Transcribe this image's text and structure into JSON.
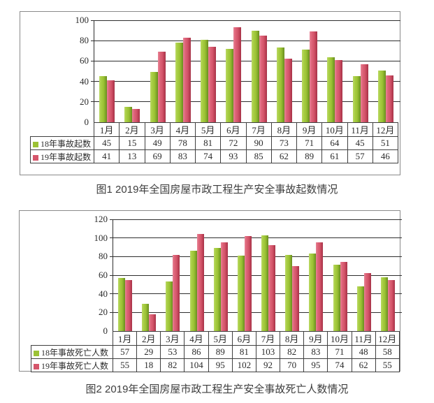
{
  "colors": {
    "green_series": "#9CC235",
    "green_light": "#BCD964",
    "green_dark": "#688A1E",
    "red_series": "#D5566B",
    "red_light": "#E88496",
    "red_dark": "#A33247",
    "grid_line": "#2E2E2E",
    "table_border": "#3F3F3F",
    "panel_border": "#8A8A8A",
    "caption_text": "#3D3D3D"
  },
  "chart_data": [
    {
      "type": "bar",
      "title": "图1 2019年全国房屋市政工程生产安全事故起数情况",
      "categories": [
        "1月",
        "2月",
        "3月",
        "4月",
        "5月",
        "6月",
        "7月",
        "8月",
        "9月",
        "10月",
        "11月",
        "12月"
      ],
      "series": [
        {
          "name": "18年事故起数",
          "color_key": "green",
          "values": [
            45,
            15,
            49,
            78,
            81,
            72,
            90,
            73,
            71,
            64,
            45,
            51
          ]
        },
        {
          "name": "19年事故起数",
          "color_key": "red",
          "values": [
            41,
            13,
            69,
            83,
            74,
            93,
            85,
            62,
            89,
            61,
            57,
            46
          ]
        }
      ],
      "xlabel": "",
      "ylabel": "",
      "ylim": [
        0,
        100
      ],
      "yticks": [
        0,
        20,
        40,
        60,
        80,
        100
      ],
      "grid": true,
      "legend_position": "table-rows-left"
    },
    {
      "type": "bar",
      "title": "图2 2019年全国房屋市政工程生产安全事故死亡人数情况",
      "categories": [
        "1月",
        "2月",
        "3月",
        "4月",
        "5月",
        "6月",
        "7月",
        "8月",
        "9月",
        "10月",
        "11月",
        "12月"
      ],
      "series": [
        {
          "name": "18年事故死亡人数",
          "color_key": "green",
          "values": [
            57,
            29,
            53,
            86,
            89,
            81,
            103,
            82,
            83,
            71,
            48,
            58
          ]
        },
        {
          "name": "19年事故死亡人数",
          "color_key": "red",
          "values": [
            55,
            18,
            82,
            104,
            95,
            102,
            92,
            70,
            95,
            74,
            62,
            55
          ]
        }
      ],
      "xlabel": "",
      "ylabel": "",
      "ylim": [
        0,
        120
      ],
      "yticks": [
        0,
        20,
        40,
        60,
        80,
        100,
        120
      ],
      "grid": true,
      "legend_position": "table-rows-left"
    }
  ]
}
